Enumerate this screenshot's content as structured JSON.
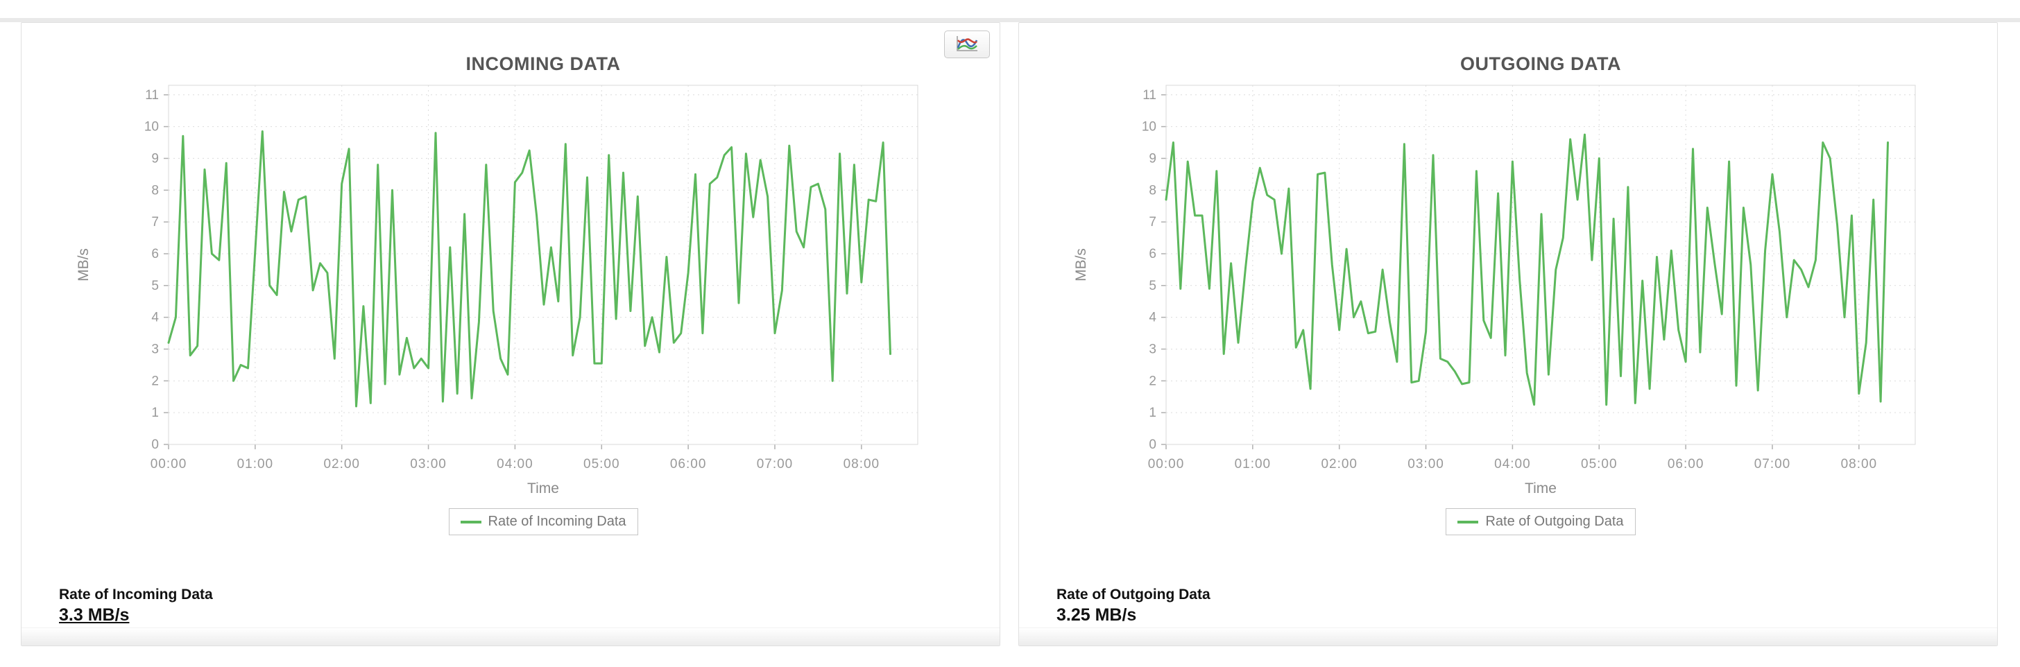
{
  "page": {
    "background": "#ffffff"
  },
  "colors": {
    "line_green": "#5cb85c",
    "grid": "#dcdcdc",
    "plot_border": "#d9d9d9",
    "tick": "#b0b0b0",
    "axis_text": "#999999",
    "axis_title": "#8a8a8a",
    "title_text": "#555555",
    "icon_red": "#cc4438",
    "icon_blue": "#3f6fb5",
    "icon_green": "#4caf50"
  },
  "panels": [
    {
      "title": "INCOMING DATA",
      "has_chart_type_button": true,
      "chart_type_button_icon": "line-chart-icon",
      "legend_label": "Rate of Incoming Data",
      "summary_label": "Rate of Incoming Data",
      "summary_value": "3.3 MB/s",
      "summary_value_underlined": true
    },
    {
      "title": "OUTGOING DATA",
      "has_chart_type_button": false,
      "legend_label": "Rate of Outgoing Data",
      "summary_label": "Rate of Outgoing Data",
      "summary_value": "3.25 MB/s",
      "summary_value_underlined": false
    }
  ],
  "chart_data": [
    {
      "type": "line",
      "title": "INCOMING DATA",
      "series_name": "Rate of Incoming Data",
      "xlabel": "Time",
      "ylabel": "MB/s",
      "ylim": [
        0,
        11
      ],
      "y_ticks": [
        "0",
        "1",
        "2",
        "3",
        "4",
        "5",
        "6",
        "7",
        "8",
        "9",
        "10",
        "11"
      ],
      "x_ticks": [
        "00:00",
        "01:00",
        "02:00",
        "03:00",
        "04:00",
        "05:00",
        "06:00",
        "07:00",
        "08:00"
      ],
      "start_time": "00:00",
      "interval_minutes": 5,
      "x_span_hours": 8.65,
      "grid": true,
      "legend_position": "bottom",
      "line_color": "#5cb85c",
      "values": [
        3.2,
        4.0,
        9.7,
        2.8,
        3.1,
        8.65,
        6.0,
        5.8,
        8.85,
        2.0,
        2.5,
        2.4,
        6.1,
        9.85,
        5.0,
        4.7,
        7.95,
        6.7,
        7.7,
        7.8,
        4.85,
        5.7,
        5.4,
        2.7,
        8.2,
        9.3,
        1.2,
        4.35,
        1.3,
        8.8,
        1.9,
        8.0,
        2.2,
        3.35,
        2.4,
        2.7,
        2.4,
        9.8,
        1.35,
        6.2,
        1.6,
        7.25,
        1.45,
        3.85,
        8.8,
        4.2,
        2.7,
        2.2,
        8.25,
        8.55,
        9.25,
        7.2,
        4.4,
        6.2,
        4.5,
        9.45,
        2.8,
        4.0,
        8.4,
        2.55,
        2.55,
        9.1,
        3.95,
        8.55,
        4.2,
        7.8,
        3.1,
        4.0,
        2.9,
        5.9,
        3.2,
        3.5,
        5.4,
        8.5,
        3.5,
        8.2,
        8.4,
        9.1,
        9.35,
        4.45,
        9.15,
        7.15,
        8.95,
        7.8,
        3.5,
        4.85,
        9.4,
        6.7,
        6.2,
        8.1,
        8.2,
        7.4,
        2.0,
        9.15,
        4.75,
        8.8,
        5.1,
        7.7,
        7.65,
        9.5,
        2.85
      ]
    },
    {
      "type": "line",
      "title": "OUTGOING DATA",
      "series_name": "Rate of Outgoing Data",
      "xlabel": "Time",
      "ylabel": "MB/s",
      "ylim": [
        0,
        11
      ],
      "y_ticks": [
        "0",
        "1",
        "2",
        "3",
        "4",
        "5",
        "6",
        "7",
        "8",
        "9",
        "10",
        "11"
      ],
      "x_ticks": [
        "00:00",
        "01:00",
        "02:00",
        "03:00",
        "04:00",
        "05:00",
        "06:00",
        "07:00",
        "08:00"
      ],
      "start_time": "00:00",
      "interval_minutes": 5,
      "x_span_hours": 8.65,
      "grid": true,
      "legend_position": "bottom",
      "line_color": "#5cb85c",
      "values": [
        7.7,
        9.5,
        4.9,
        8.9,
        7.2,
        7.2,
        4.9,
        8.6,
        2.85,
        5.7,
        3.2,
        5.55,
        7.65,
        8.7,
        7.85,
        7.7,
        6.0,
        8.05,
        3.05,
        3.6,
        1.75,
        8.5,
        8.55,
        5.65,
        3.6,
        6.15,
        4.0,
        4.5,
        3.5,
        3.55,
        5.5,
        3.85,
        2.6,
        9.45,
        1.95,
        2.0,
        3.55,
        9.1,
        2.7,
        2.6,
        2.3,
        1.9,
        1.95,
        8.6,
        3.9,
        3.35,
        7.9,
        2.8,
        8.9,
        5.15,
        2.25,
        1.25,
        7.25,
        2.2,
        5.5,
        6.5,
        9.6,
        7.7,
        9.75,
        5.8,
        9.0,
        1.25,
        7.1,
        2.15,
        8.1,
        1.3,
        5.15,
        1.75,
        5.9,
        3.3,
        6.1,
        3.6,
        2.6,
        9.3,
        2.9,
        7.45,
        5.7,
        4.1,
        8.9,
        1.85,
        7.45,
        5.65,
        1.7,
        6.1,
        8.5,
        6.7,
        4.0,
        5.8,
        5.5,
        4.95,
        5.8,
        9.5,
        9.0,
        6.9,
        4.0,
        7.2,
        1.6,
        3.2,
        7.7,
        1.35,
        9.5
      ]
    }
  ]
}
